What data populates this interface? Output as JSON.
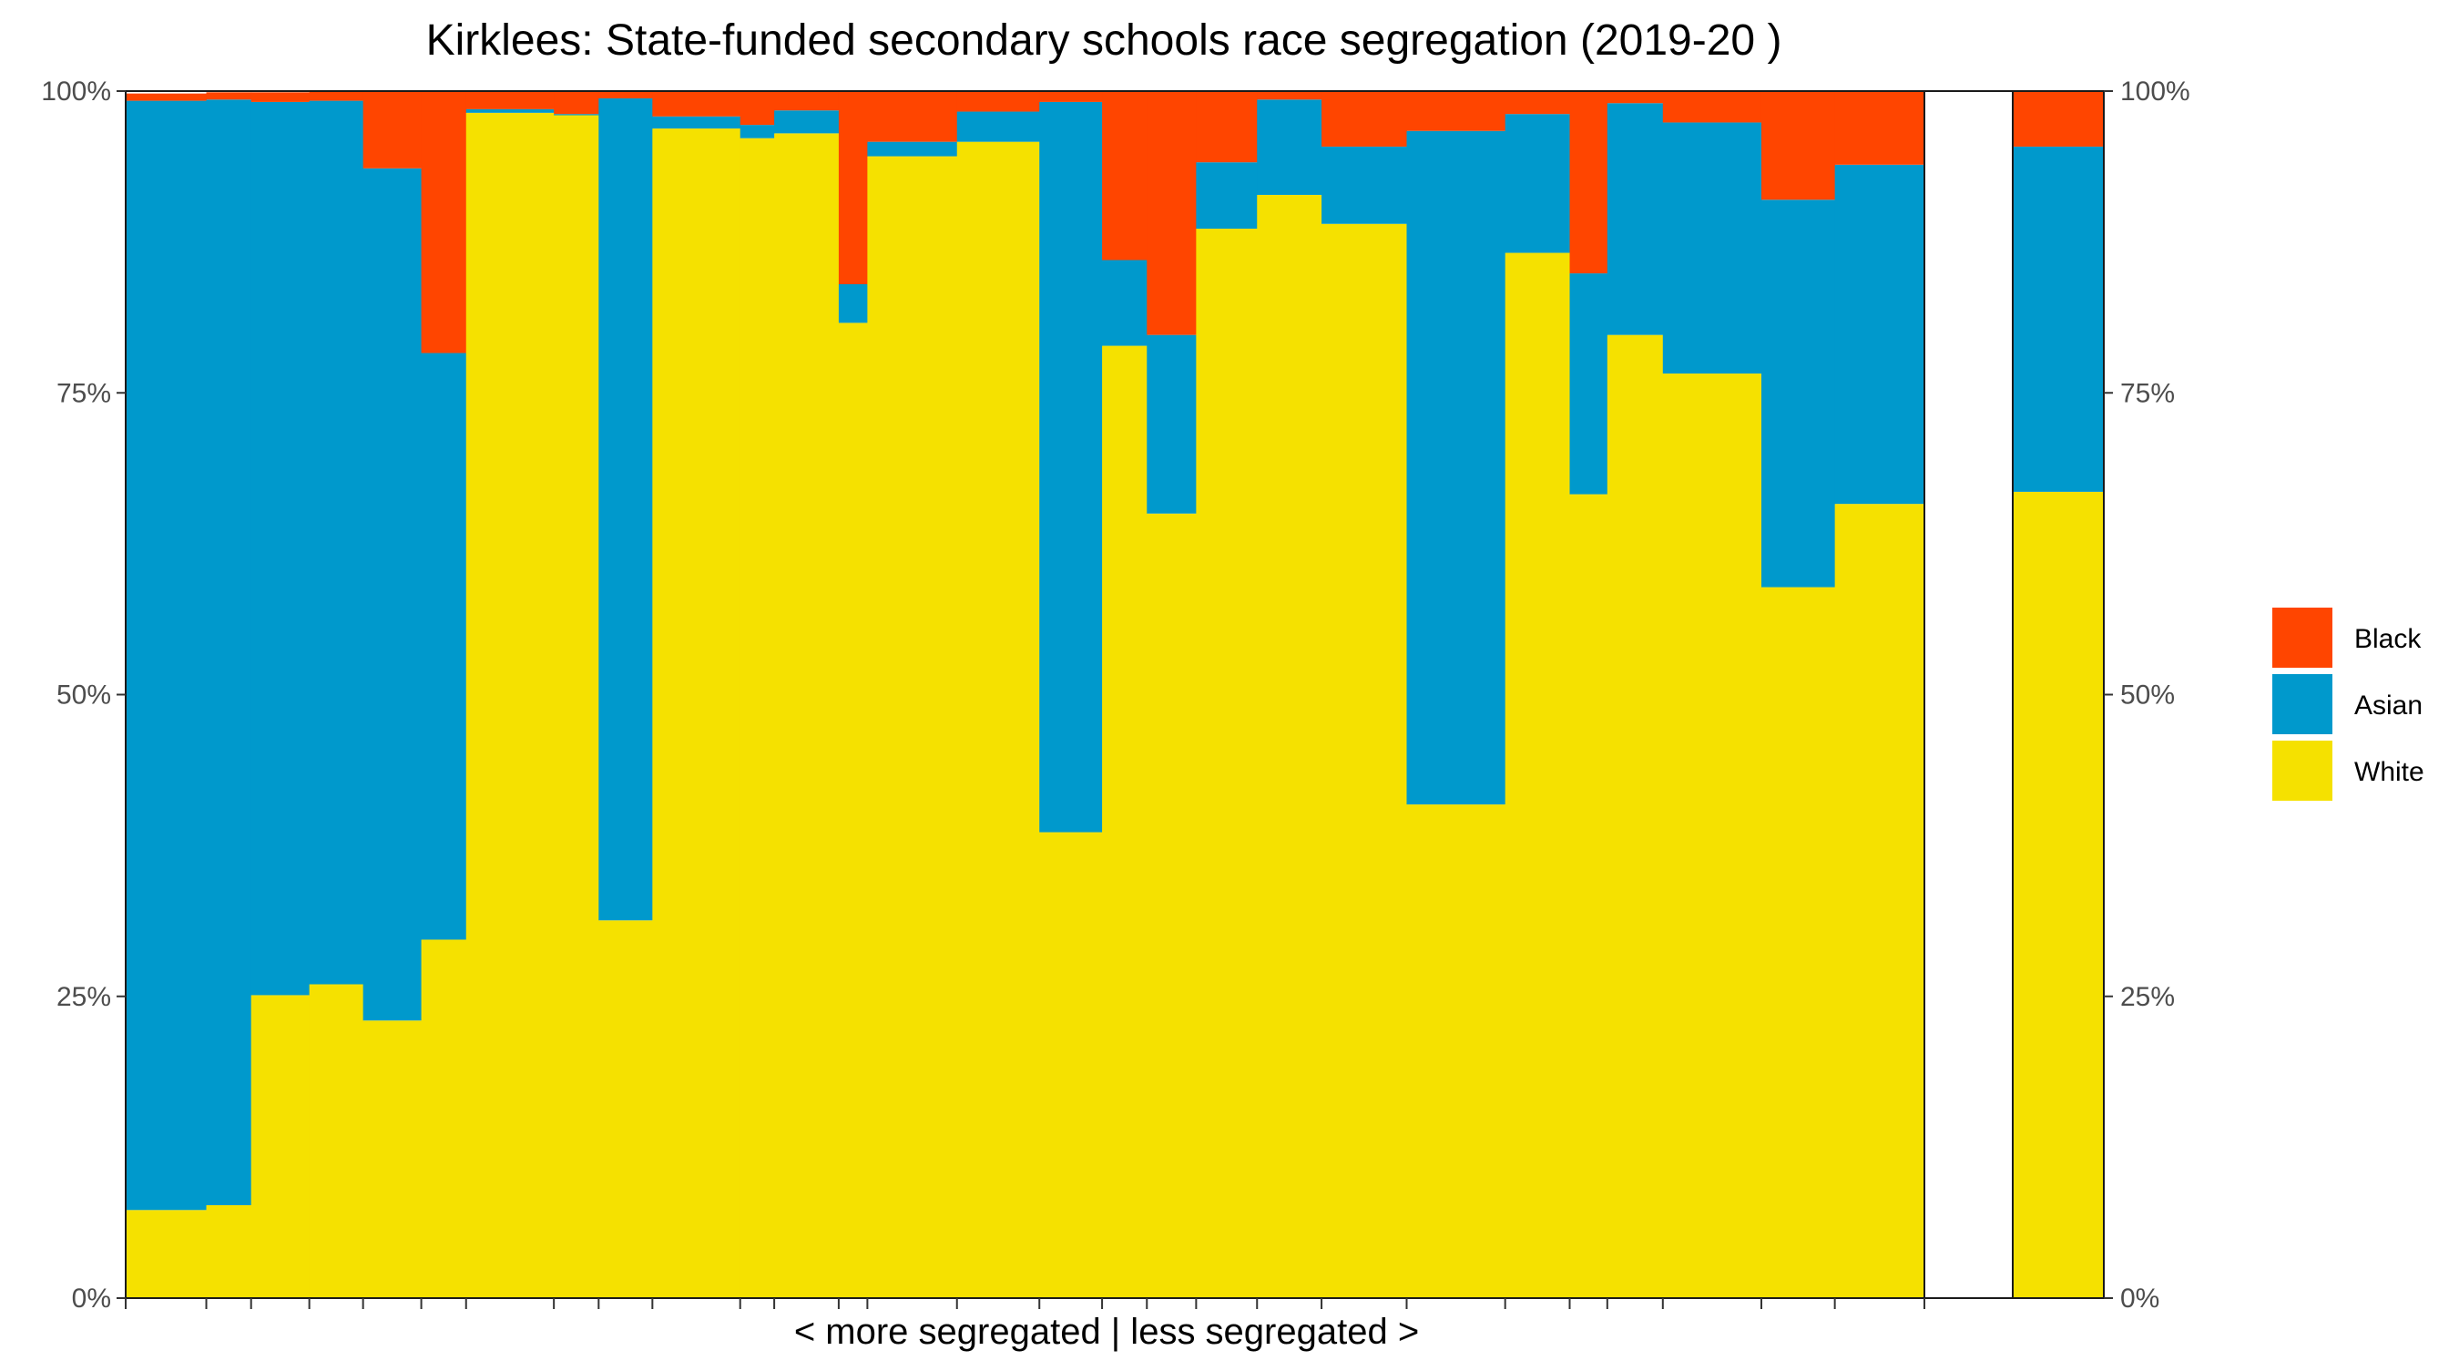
{
  "chart_data": {
    "type": "bar",
    "variant": "stacked-100-marimekko",
    "title": "Kirklees: State-funded secondary schools race segregation (2019-20 )",
    "xlabel": "< more segregated | less segregated >",
    "ylabel": "",
    "ylim": [
      0,
      100
    ],
    "yticks": [
      "0%",
      "25%",
      "50%",
      "75%",
      "100%"
    ],
    "legend": {
      "placement": "right",
      "entries": [
        {
          "name": "Black",
          "color": "#ff4500"
        },
        {
          "name": "Asian",
          "color": "#0099cc"
        },
        {
          "name": "White",
          "color": "#f5e100"
        }
      ]
    },
    "series_colors": {
      "white": "#f5e100",
      "asian": "#0099cc",
      "black": "#ff4500"
    },
    "schools": [
      {
        "width": 0.9,
        "white": 7.3,
        "asian": 91.9,
        "black": 0.6
      },
      {
        "width": 0.5,
        "white": 7.7,
        "asian": 91.6,
        "black": 0.6
      },
      {
        "width": 0.65,
        "white": 25.1,
        "asian": 74.0,
        "black": 0.8
      },
      {
        "width": 0.6,
        "white": 26.0,
        "asian": 73.2,
        "black": 0.8
      },
      {
        "width": 0.65,
        "white": 23.0,
        "asian": 70.6,
        "black": 6.4
      },
      {
        "width": 0.5,
        "white": 29.7,
        "asian": 48.6,
        "black": 21.7
      },
      {
        "width": 0.98,
        "white": 98.2,
        "asian": 0.3,
        "black": 1.5
      },
      {
        "width": 0.5,
        "white": 98.0,
        "asian": 0.1,
        "black": 1.9
      },
      {
        "width": 0.6,
        "white": 31.3,
        "asian": 68.1,
        "black": 0.6
      },
      {
        "width": 0.98,
        "white": 96.9,
        "asian": 1.0,
        "black": 2.1
      },
      {
        "width": 0.38,
        "white": 96.1,
        "asian": 1.1,
        "black": 2.8
      },
      {
        "width": 0.72,
        "white": 96.5,
        "asian": 1.9,
        "black": 1.6
      },
      {
        "width": 0.32,
        "white": 80.8,
        "asian": 3.2,
        "black": 16.0
      },
      {
        "width": 1.0,
        "white": 94.6,
        "asian": 1.2,
        "black": 4.2
      },
      {
        "width": 0.92,
        "white": 95.8,
        "asian": 2.5,
        "black": 1.7
      },
      {
        "width": 0.7,
        "white": 38.6,
        "asian": 60.5,
        "black": 0.9
      },
      {
        "width": 0.5,
        "white": 78.9,
        "asian": 7.1,
        "black": 14.0
      },
      {
        "width": 0.55,
        "white": 65.0,
        "asian": 14.8,
        "black": 20.2
      },
      {
        "width": 0.68,
        "white": 88.6,
        "asian": 5.5,
        "black": 5.9
      },
      {
        "width": 0.72,
        "white": 91.4,
        "asian": 7.9,
        "black": 0.7
      },
      {
        "width": 0.95,
        "white": 89.0,
        "asian": 6.4,
        "black": 4.6
      },
      {
        "width": 1.1,
        "white": 40.9,
        "asian": 55.8,
        "black": 3.3
      },
      {
        "width": 0.72,
        "white": 86.6,
        "asian": 11.5,
        "black": 1.9
      },
      {
        "width": 0.42,
        "white": 66.6,
        "asian": 18.3,
        "black": 15.1
      },
      {
        "width": 0.62,
        "white": 79.8,
        "asian": 19.2,
        "black": 1.0
      },
      {
        "width": 1.1,
        "white": 76.6,
        "asian": 20.8,
        "black": 2.6
      },
      {
        "width": 0.82,
        "white": 58.9,
        "asian": 32.1,
        "black": 9.0
      },
      {
        "width": 1.0,
        "white": 65.8,
        "asian": 28.1,
        "black": 6.1
      }
    ],
    "overall": {
      "white": 66.8,
      "asian": 28.6,
      "black": 4.6
    }
  }
}
